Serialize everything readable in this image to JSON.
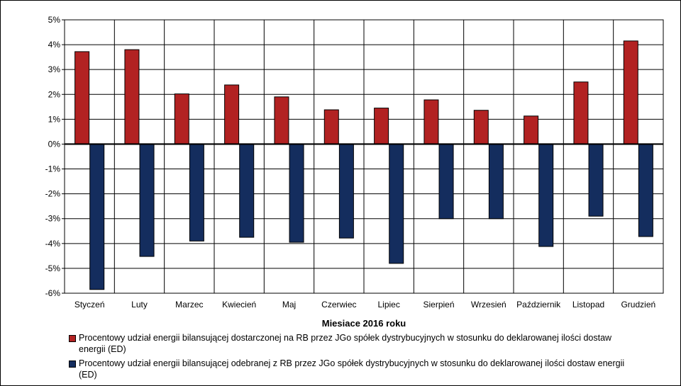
{
  "chart_data": {
    "type": "bar",
    "xlabel": "Miesiące 2016  roku",
    "ylabel": "",
    "ylim": [
      -6,
      5
    ],
    "ytick_labels": [
      "5%",
      "4%",
      "3%",
      "2%",
      "1%",
      "0%",
      "-1%",
      "-2%",
      "-3%",
      "-4%",
      "-5%",
      "-6%"
    ],
    "ytick_values": [
      5,
      4,
      3,
      2,
      1,
      0,
      -1,
      -2,
      -3,
      -4,
      -5,
      -6
    ],
    "categories": [
      "Styczeń",
      "Luty",
      "Marzec",
      "Kwiecień",
      "Maj",
      "Czerwiec",
      "Lipiec",
      "Sierpień",
      "Wrzesień",
      "Październik",
      "Listopad",
      "Grudzień"
    ],
    "series": [
      {
        "name": "Procentowy udział energii bilansującej dostarczonej na RB przez JGo spółek dystrybucyjnych w stosunku do deklarowanej ilości dostaw energii (ED)",
        "color": "#b22222",
        "values": [
          3.72,
          3.8,
          2.02,
          2.38,
          1.9,
          1.38,
          1.45,
          1.78,
          1.36,
          1.13,
          2.5,
          4.15
        ]
      },
      {
        "name": "Procentowy udział energii bilansującej odebranej z RB przez JGo spółek dystrybucyjnych w stosunku do deklarowanej ilości dostaw energii (ED)",
        "color": "#142d5e",
        "values": [
          -5.85,
          -4.52,
          -3.9,
          -3.75,
          -3.95,
          -3.78,
          -4.8,
          -3.0,
          -3.0,
          -4.12,
          -2.9,
          -3.72
        ]
      }
    ],
    "grid": true,
    "legend_position": "bottom"
  }
}
